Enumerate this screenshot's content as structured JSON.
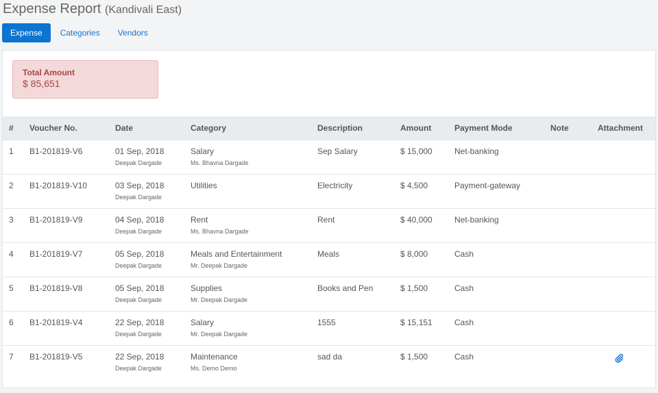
{
  "header": {
    "title": "Expense Report",
    "subtitle": "(Kandivali East)"
  },
  "tabs": [
    {
      "label": "Expense",
      "active": true
    },
    {
      "label": "Categories",
      "active": false
    },
    {
      "label": "Vendors",
      "active": false
    }
  ],
  "summary": {
    "total_label": "Total Amount",
    "total_value": "$ 85,651"
  },
  "table": {
    "columns": [
      "#",
      "Voucher No.",
      "Date",
      "Category",
      "Description",
      "Amount",
      "Payment Mode",
      "Note",
      "Attachment"
    ],
    "rows": [
      {
        "num": "1",
        "voucher": "B1-201819-V6",
        "date": "01 Sep, 2018",
        "date_by": "Deepak Dargade",
        "category": "Salary",
        "category_by": "Ms. Bhavna Dargade",
        "description": "Sep Salary",
        "amount": "$ 15,000",
        "payment_mode": "Net-banking",
        "note": "",
        "attachment_icon": ""
      },
      {
        "num": "2",
        "voucher": "B1-201819-V10",
        "date": "03 Sep, 2018",
        "date_by": "Deepak Dargade",
        "category": "Utilities",
        "category_by": "",
        "description": "Electricity",
        "amount": "$ 4,500",
        "payment_mode": "Payment-gateway",
        "note": "",
        "attachment_icon": ""
      },
      {
        "num": "3",
        "voucher": "B1-201819-V9",
        "date": "04 Sep, 2018",
        "date_by": "Deepak Dargade",
        "category": "Rent",
        "category_by": "Ms. Bhavna Dargade",
        "description": "Rent",
        "amount": "$ 40,000",
        "payment_mode": "Net-banking",
        "note": "",
        "attachment_icon": ""
      },
      {
        "num": "4",
        "voucher": "B1-201819-V7",
        "date": "05 Sep, 2018",
        "date_by": "Deepak Dargade",
        "category": "Meals and Entertainment",
        "category_by": "Mr. Deepak Dargade",
        "description": "Meals",
        "amount": "$ 8,000",
        "payment_mode": "Cash",
        "note": "",
        "attachment_icon": ""
      },
      {
        "num": "5",
        "voucher": "B1-201819-V8",
        "date": "05 Sep, 2018",
        "date_by": "Deepak Dargade",
        "category": "Supplies",
        "category_by": "Mr. Deepak Dargade",
        "description": "Books and Pen",
        "amount": "$ 1,500",
        "payment_mode": "Cash",
        "note": "",
        "attachment_icon": ""
      },
      {
        "num": "6",
        "voucher": "B1-201819-V4",
        "date": "22 Sep, 2018",
        "date_by": "Deepak Dargade",
        "category": "Salary",
        "category_by": "Mr. Deepak Dargade",
        "description": "1555",
        "amount": "$ 15,151",
        "payment_mode": "Cash",
        "note": "",
        "attachment_icon": ""
      },
      {
        "num": "7",
        "voucher": "B1-201819-V5",
        "date": "22 Sep, 2018",
        "date_by": "Deepak Dargade",
        "category": "Maintenance",
        "category_by": "Ms. Demo Demo",
        "description": "sad da",
        "amount": "$ 1,500",
        "payment_mode": "Cash",
        "note": "",
        "attachment_icon": "paperclip-icon"
      }
    ]
  }
}
